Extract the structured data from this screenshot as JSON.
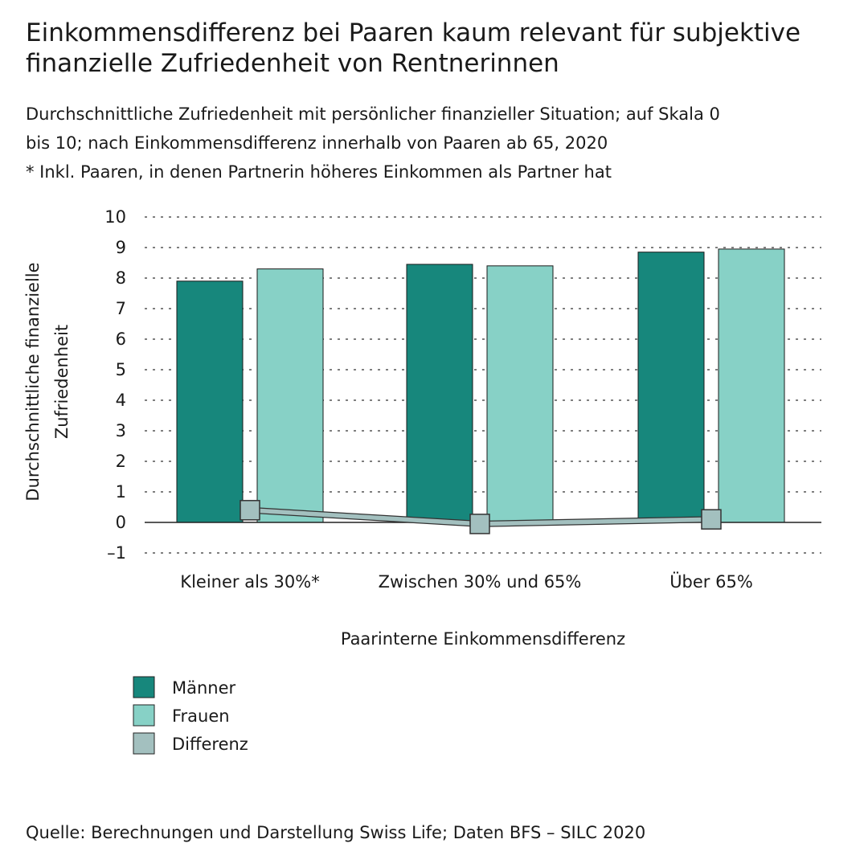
{
  "title": "Einkommensdifferenz bei Paaren kaum relevant für subjektive finanzielle Zufriedenheit von Rentnerinnen",
  "subtitle_lines": [
    "Durchschnittliche Zufriedenheit mit persönlicher finanzieller Situation; auf Skala 0",
    "bis 10; nach Einkommensdifferenz innerhalb von Paaren ab 65, 2020",
    "* Inkl. Paaren, in denen Partnerin höheres Einkommen als Partner hat"
  ],
  "source": "Quelle: Berechnungen und Darstellung Swiss Life; Daten BFS – SILC 2020",
  "chart_data": {
    "type": "bar",
    "categories": [
      "Kleiner als 30%*",
      "Zwischen 30% und 65%",
      "Über 65%"
    ],
    "series": [
      {
        "name": "Männer",
        "type": "bar",
        "color": "#17877c",
        "values": [
          7.9,
          8.45,
          8.85
        ]
      },
      {
        "name": "Frauen",
        "type": "bar",
        "color": "#87d1c6",
        "values": [
          8.3,
          8.4,
          8.95
        ]
      },
      {
        "name": "Differenz",
        "type": "line",
        "color": "#a3c0bf",
        "values": [
          0.4,
          -0.05,
          0.1
        ]
      }
    ],
    "xlabel": "Paarinterne Einkommensdifferenz",
    "ylabel": "Durchschnittliche finanzielle Zufriedenheit",
    "ylim": [
      -1,
      10
    ],
    "yticks": [
      -1,
      0,
      1,
      2,
      3,
      4,
      5,
      6,
      7,
      8,
      9,
      10
    ],
    "ytick_labels": [
      "–1",
      "0",
      "1",
      "2",
      "3",
      "4",
      "5",
      "6",
      "7",
      "8",
      "9",
      "10"
    ],
    "grid": true,
    "legend_position": "bottom-left"
  }
}
